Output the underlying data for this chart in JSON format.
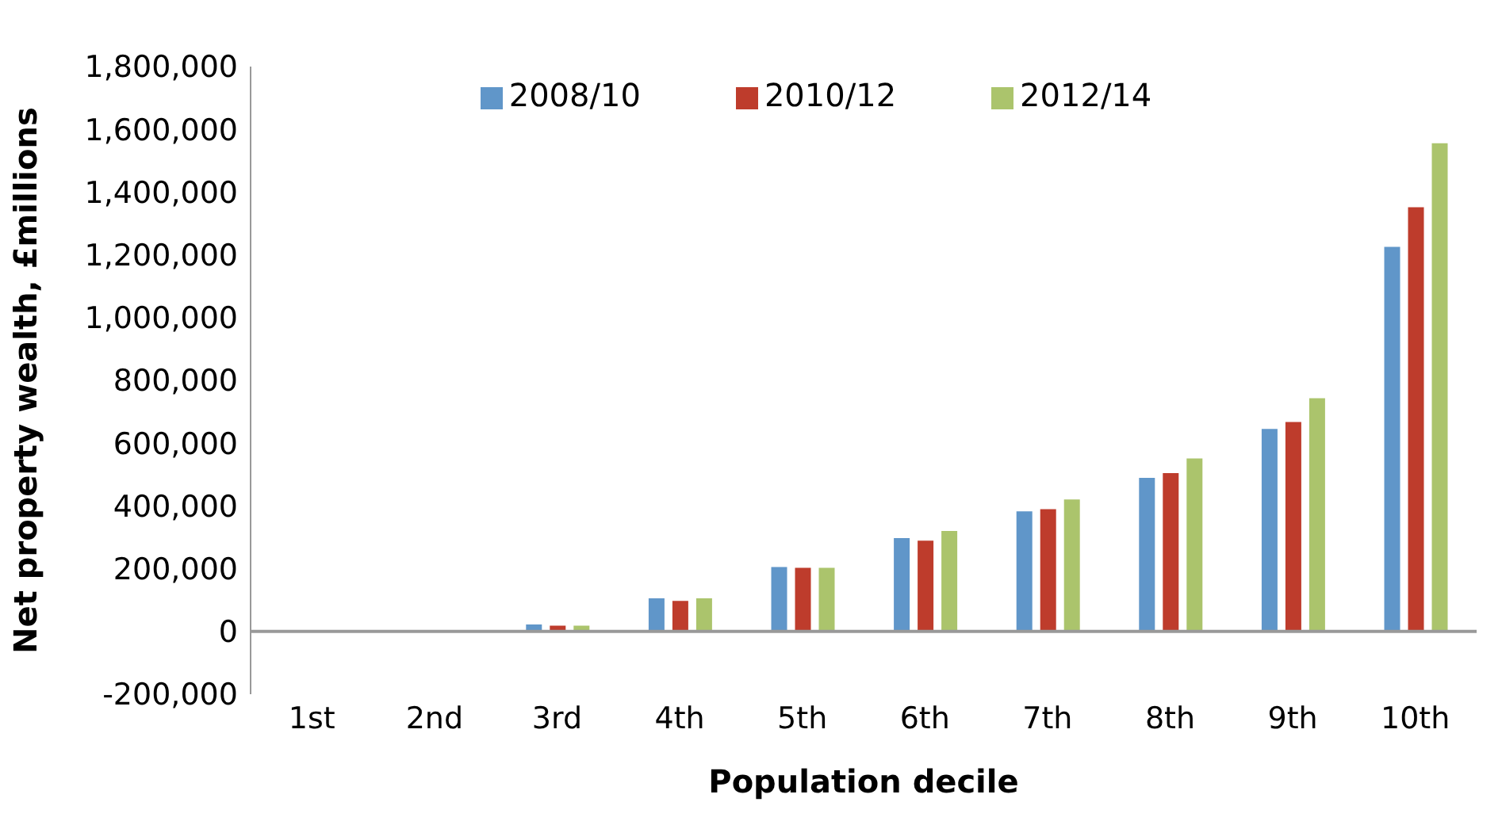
{
  "chart_data": {
    "type": "bar",
    "xlabel": "Population decile",
    "ylabel": "Net property wealth, £millions",
    "categories": [
      "1st",
      "2nd",
      "3rd",
      "4th",
      "5th",
      "6th",
      "7th",
      "8th",
      "9th",
      "10th"
    ],
    "series": [
      {
        "name": "2008/10",
        "color": "#6096c9",
        "values": [
          0,
          0,
          25000,
          108000,
          208000,
          300000,
          385000,
          492000,
          648000,
          1228000
        ]
      },
      {
        "name": "2010/12",
        "color": "#be3c2c",
        "values": [
          0,
          0,
          21000,
          100000,
          205000,
          292000,
          392000,
          507000,
          670000,
          1354000
        ]
      },
      {
        "name": "2012/14",
        "color": "#abc46c",
        "values": [
          0,
          0,
          21000,
          108000,
          205000,
          323000,
          423000,
          554000,
          746000,
          1558000
        ]
      }
    ],
    "ylim": [
      -200000,
      1800000
    ],
    "yticks": [
      {
        "value": -200000,
        "label": "-200,000"
      },
      0,
      {
        "value": 200000,
        "label": "200,000"
      },
      {
        "value": 400000,
        "label": "400,000"
      },
      {
        "value": 600000,
        "label": "600,000"
      },
      {
        "value": 800000,
        "label": "800,000"
      },
      {
        "value": 1000000,
        "label": "1,000,000"
      },
      {
        "value": 1200000,
        "label": "1,200,000"
      },
      {
        "value": 1400000,
        "label": "1,400,000"
      },
      {
        "value": 1600000,
        "label": "1,600,000"
      },
      {
        "value": 1800000,
        "label": "1,800,000"
      }
    ],
    "legend": "top"
  }
}
